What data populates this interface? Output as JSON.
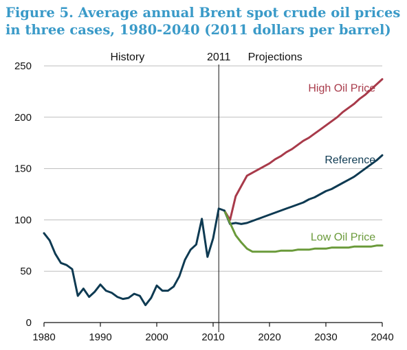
{
  "title_line1": "Figure 5. Average annual Brent spot crude oil prices",
  "title_line2": "in three cases, 1980-2040 (2011 dollars per barrel)",
  "chart_data": {
    "type": "line",
    "title": "Figure 5. Average annual Brent spot crude oil prices in three cases, 1980-2040 (2011 dollars per barrel)",
    "xlim": [
      1980,
      2040
    ],
    "ylim": [
      0,
      250
    ],
    "x_ticks": [
      "1980",
      "1990",
      "2000",
      "2010",
      "2020",
      "2030",
      "2040"
    ],
    "y_ticks": [
      "0",
      "50",
      "100",
      "150",
      "200",
      "250"
    ],
    "grid": "horizontal",
    "divider_year": 2011,
    "region_labels": {
      "history": "History",
      "divider": "2011",
      "projections": "Projections"
    },
    "history": {
      "color": "#0e3a52",
      "x": [
        1980,
        1981,
        1982,
        1983,
        1984,
        1985,
        1986,
        1987,
        1988,
        1989,
        1990,
        1991,
        1992,
        1993,
        1994,
        1995,
        1996,
        1997,
        1998,
        1999,
        2000,
        2001,
        2002,
        2003,
        2004,
        2005,
        2006,
        2007,
        2008,
        2009,
        2010,
        2011,
        2012
      ],
      "y": [
        87,
        80,
        67,
        58,
        56,
        52,
        26,
        33,
        25,
        30,
        37,
        31,
        29,
        25,
        23,
        24,
        28,
        26,
        17,
        24,
        36,
        31,
        31,
        35,
        45,
        61,
        71,
        76,
        101,
        64,
        82,
        111,
        109
      ]
    },
    "series": [
      {
        "name": "High Oil Price",
        "color": "#a83a4a",
        "x": [
          2012,
          2013,
          2014,
          2015,
          2016,
          2017,
          2018,
          2019,
          2020,
          2021,
          2022,
          2023,
          2024,
          2025,
          2026,
          2027,
          2028,
          2029,
          2030,
          2031,
          2032,
          2033,
          2034,
          2035,
          2036,
          2037,
          2038,
          2039,
          2040
        ],
        "y": [
          109,
          100,
          123,
          133,
          143,
          146,
          149,
          152,
          155,
          159,
          162,
          166,
          169,
          173,
          177,
          180,
          184,
          188,
          192,
          196,
          200,
          205,
          209,
          213,
          218,
          222,
          227,
          232,
          237
        ]
      },
      {
        "name": "Reference",
        "color": "#0e3a52",
        "x": [
          2012,
          2013,
          2014,
          2015,
          2016,
          2017,
          2018,
          2019,
          2020,
          2021,
          2022,
          2023,
          2024,
          2025,
          2026,
          2027,
          2028,
          2029,
          2030,
          2031,
          2032,
          2033,
          2034,
          2035,
          2036,
          2037,
          2038,
          2039,
          2040
        ],
        "y": [
          109,
          96,
          97,
          96,
          97,
          99,
          101,
          103,
          105,
          107,
          109,
          111,
          113,
          115,
          117,
          120,
          122,
          125,
          128,
          130,
          133,
          136,
          139,
          142,
          146,
          150,
          154,
          158,
          163
        ]
      },
      {
        "name": "Low Oil Price",
        "color": "#6a9a3a",
        "x": [
          2012,
          2013,
          2014,
          2015,
          2016,
          2017,
          2018,
          2019,
          2020,
          2021,
          2022,
          2023,
          2024,
          2025,
          2026,
          2027,
          2028,
          2029,
          2030,
          2031,
          2032,
          2033,
          2034,
          2035,
          2036,
          2037,
          2038,
          2039,
          2040
        ],
        "y": [
          109,
          97,
          85,
          78,
          72,
          69,
          69,
          69,
          69,
          69,
          70,
          70,
          70,
          71,
          71,
          71,
          72,
          72,
          72,
          73,
          73,
          73,
          73,
          74,
          74,
          74,
          74,
          75,
          75
        ]
      }
    ]
  }
}
